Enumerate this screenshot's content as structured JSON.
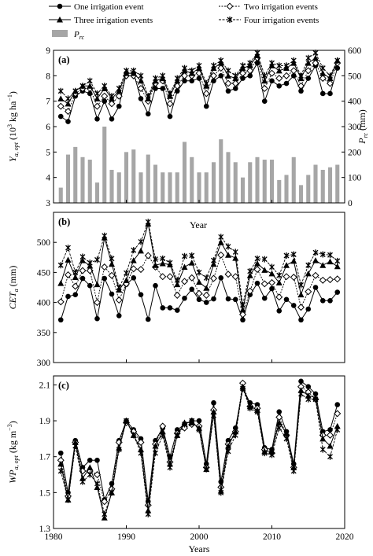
{
  "legend": {
    "one": "One irrigation event",
    "two": "Two irrigation events",
    "three": "Three irrigation events",
    "four": "Four irrigation events",
    "prc": "P",
    "prc_sub": "rc"
  },
  "chart_data": [
    {
      "panel": "(a)",
      "type": "line",
      "title": "",
      "xlabel": "",
      "ylabel": "Y_a,opt (10^3 kg ha^-1)",
      "ylabel_parts": {
        "main": "Y",
        "sub": "a, opt",
        "rest": " (10",
        "sup1": "3",
        "mid": " kg ha",
        "sup2": "−1",
        "end": ")"
      },
      "y2label_parts": {
        "main": "P",
        "sub": "rc",
        "rest": " (mm)"
      },
      "xlim": [
        1980,
        2020
      ],
      "ylim": [
        3,
        9
      ],
      "y_ticks": [
        3,
        4,
        5,
        6,
        7,
        8,
        9
      ],
      "y2lim": [
        0,
        600
      ],
      "y2_ticks": [
        0,
        100,
        200,
        300,
        400,
        500,
        600
      ],
      "x": [
        1981,
        1982,
        1983,
        1984,
        1985,
        1986,
        1987,
        1988,
        1989,
        1990,
        1991,
        1992,
        1993,
        1994,
        1995,
        1996,
        1997,
        1998,
        1999,
        2000,
        2001,
        2002,
        2003,
        2004,
        2005,
        2006,
        2007,
        2008,
        2009,
        2010,
        2011,
        2012,
        2013,
        2014,
        2015,
        2016,
        2017,
        2018,
        2019
      ],
      "series": [
        {
          "name": "One irrigation event",
          "marker": "circle",
          "values": [
            6.4,
            6.2,
            7.2,
            7.4,
            7.3,
            6.3,
            7.0,
            6.3,
            6.8,
            8.1,
            8.1,
            7.1,
            6.5,
            7.5,
            7.5,
            6.4,
            7.4,
            7.8,
            7.8,
            7.9,
            6.8,
            7.8,
            8.0,
            7.4,
            7.5,
            7.9,
            8.0,
            8.5,
            7.0,
            7.8,
            7.6,
            7.7,
            8.0,
            7.4,
            7.9,
            8.4,
            7.3,
            7.3,
            8.3
          ]
        },
        {
          "name": "Two irrigation events",
          "marker": "diamond",
          "values": [
            6.8,
            6.6,
            7.3,
            7.5,
            7.5,
            6.8,
            7.2,
            6.9,
            7.2,
            8.0,
            8.0,
            7.5,
            7.0,
            7.7,
            7.8,
            6.9,
            7.6,
            8.0,
            8.0,
            8.1,
            7.3,
            8.0,
            8.3,
            7.7,
            7.7,
            8.1,
            8.2,
            8.7,
            7.5,
            8.1,
            7.9,
            8.0,
            8.2,
            7.6,
            8.2,
            8.5,
            7.9,
            7.7,
            8.5
          ]
        },
        {
          "name": "Three irrigation events",
          "marker": "triangle",
          "values": [
            7.1,
            6.9,
            7.4,
            7.6,
            7.6,
            7.1,
            7.5,
            7.1,
            7.4,
            8.1,
            8.1,
            7.8,
            7.1,
            7.8,
            7.9,
            7.2,
            7.8,
            8.2,
            8.1,
            8.3,
            7.6,
            8.3,
            8.5,
            8.0,
            7.9,
            8.3,
            8.4,
            8.8,
            7.8,
            8.4,
            8.2,
            8.3,
            8.5,
            7.9,
            8.5,
            8.7,
            8.1,
            7.9,
            8.6
          ]
        },
        {
          "name": "Four irrigation events",
          "marker": "star",
          "values": [
            7.4,
            7.1,
            7.4,
            7.6,
            7.8,
            7.3,
            7.6,
            7.2,
            7.5,
            8.2,
            8.2,
            8.0,
            7.2,
            7.9,
            8.0,
            7.3,
            7.9,
            8.3,
            8.2,
            8.4,
            7.7,
            8.4,
            8.6,
            8.2,
            8.0,
            8.4,
            8.5,
            8.9,
            8.0,
            8.5,
            8.4,
            8.4,
            8.6,
            8.0,
            8.7,
            8.9,
            8.3,
            8.0,
            8.6
          ]
        },
        {
          "name": "P",
          "type": "bar",
          "axis": "right",
          "values": [
            60,
            190,
            220,
            180,
            170,
            80,
            300,
            130,
            120,
            200,
            210,
            120,
            190,
            150,
            120,
            120,
            120,
            240,
            180,
            120,
            120,
            160,
            250,
            200,
            160,
            100,
            160,
            180,
            170,
            170,
            90,
            110,
            180,
            70,
            110,
            150,
            130,
            140,
            150
          ]
        }
      ]
    },
    {
      "panel": "(b)",
      "type": "line",
      "title": "",
      "annotation": "Year",
      "xlabel": "",
      "ylabel_parts": {
        "main": "CET",
        "sub": "a",
        "rest": " (mm)"
      },
      "xlim": [
        1980,
        2020
      ],
      "ylim": [
        300,
        550
      ],
      "y_ticks": [
        300,
        350,
        400,
        450,
        500
      ],
      "x": [
        1981,
        1982,
        1983,
        1984,
        1985,
        1986,
        1987,
        1988,
        1989,
        1990,
        1991,
        1992,
        1993,
        1994,
        1995,
        1996,
        1997,
        1998,
        1999,
        2000,
        2001,
        2002,
        2003,
        2004,
        2005,
        2006,
        2007,
        2008,
        2009,
        2010,
        2011,
        2012,
        2013,
        2014,
        2015,
        2016,
        2017,
        2018,
        2019
      ],
      "series": [
        {
          "name": "One irrigation event",
          "marker": "circle",
          "values": [
            371,
            410,
            413,
            440,
            428,
            373,
            440,
            414,
            378,
            430,
            441,
            413,
            372,
            428,
            391,
            391,
            387,
            407,
            422,
            405,
            400,
            406,
            441,
            406,
            405,
            371,
            413,
            432,
            407,
            423,
            386,
            405,
            395,
            371,
            389,
            425,
            403,
            403,
            417
          ]
        },
        {
          "name": "Two irrigation events",
          "marker": "diamond",
          "values": [
            401,
            446,
            427,
            453,
            453,
            400,
            459,
            445,
            404,
            431,
            456,
            455,
            478,
            459,
            443,
            443,
            412,
            435,
            441,
            415,
            412,
            440,
            479,
            447,
            443,
            380,
            419,
            455,
            431,
            433,
            409,
            443,
            442,
            392,
            418,
            445,
            437,
            438,
            439
          ]
        },
        {
          "name": "Three irrigation events",
          "marker": "triangle",
          "values": [
            432,
            471,
            442,
            470,
            461,
            430,
            508,
            464,
            421,
            437,
            470,
            486,
            531,
            462,
            465,
            463,
            430,
            459,
            466,
            434,
            424,
            464,
            500,
            479,
            474,
            388,
            445,
            465,
            454,
            448,
            433,
            462,
            469,
            413,
            448,
            470,
            462,
            468,
            460
          ]
        },
        {
          "name": "Four irrigation events",
          "marker": "star",
          "values": [
            462,
            491,
            450,
            476,
            466,
            471,
            511,
            473,
            425,
            449,
            487,
            501,
            534,
            472,
            473,
            466,
            437,
            477,
            478,
            450,
            441,
            470,
            509,
            493,
            484,
            396,
            452,
            473,
            472,
            459,
            445,
            478,
            480,
            429,
            462,
            483,
            480,
            479,
            469
          ]
        }
      ]
    },
    {
      "panel": "(c)",
      "type": "line",
      "title": "",
      "xlabel": "Years",
      "ylabel_parts": {
        "main": "WP",
        "sub": "a, opt",
        "rest": " (kg m",
        "sup": "−3",
        "end": ")"
      },
      "xlim": [
        1980,
        2020
      ],
      "x_ticks": [
        1980,
        1990,
        2000,
        2010,
        2020
      ],
      "ylim": [
        1.3,
        2.15
      ],
      "y_ticks": [
        1.3,
        1.5,
        1.7,
        1.9,
        2.1
      ],
      "x": [
        1981,
        1982,
        1983,
        1984,
        1985,
        1986,
        1987,
        1988,
        1989,
        1990,
        1991,
        1992,
        1993,
        1994,
        1995,
        1996,
        1997,
        1998,
        1999,
        2000,
        2001,
        2002,
        2003,
        2004,
        2005,
        2006,
        2007,
        2008,
        2009,
        2010,
        2011,
        2012,
        2013,
        2014,
        2015,
        2016,
        2017,
        2018,
        2019
      ],
      "series": [
        {
          "name": "One irrigation event",
          "marker": "circle",
          "values": [
            1.72,
            1.5,
            1.79,
            1.64,
            1.68,
            1.68,
            1.46,
            1.55,
            1.79,
            1.9,
            1.85,
            1.8,
            1.45,
            1.79,
            1.86,
            1.7,
            1.85,
            1.88,
            1.9,
            1.9,
            1.66,
            2.0,
            1.56,
            1.79,
            1.86,
            2.08,
            2.0,
            1.99,
            1.75,
            1.74,
            1.95,
            1.84,
            1.66,
            2.12,
            2.09,
            2.05,
            1.84,
            1.85,
            1.99
          ]
        },
        {
          "name": "Two irrigation events",
          "marker": "diamond",
          "values": [
            1.68,
            1.48,
            1.78,
            1.62,
            1.62,
            1.6,
            1.45,
            1.52,
            1.78,
            1.89,
            1.84,
            1.78,
            1.43,
            1.77,
            1.87,
            1.67,
            1.83,
            1.86,
            1.88,
            1.87,
            1.64,
            1.96,
            1.53,
            1.77,
            1.84,
            2.11,
            1.98,
            1.97,
            1.74,
            1.72,
            1.92,
            1.82,
            1.64,
            2.09,
            2.06,
            2.02,
            1.82,
            1.82,
            1.94
          ]
        },
        {
          "name": "Three irrigation events",
          "marker": "triangle",
          "values": [
            1.66,
            1.46,
            1.78,
            1.58,
            1.64,
            1.53,
            1.36,
            1.5,
            1.75,
            1.9,
            1.82,
            1.74,
            1.4,
            1.76,
            1.84,
            1.66,
            1.82,
            1.89,
            1.89,
            1.86,
            1.63,
            1.95,
            1.51,
            1.76,
            1.84,
            2.09,
            1.98,
            1.96,
            1.73,
            1.73,
            1.89,
            1.83,
            1.64,
            2.07,
            2.04,
            2.03,
            1.8,
            1.76,
            1.87
          ]
        },
        {
          "name": "Four irrigation events",
          "marker": "star",
          "values": [
            1.62,
            1.46,
            1.76,
            1.56,
            1.6,
            1.55,
            1.38,
            1.5,
            1.74,
            1.9,
            1.82,
            1.72,
            1.38,
            1.72,
            1.82,
            1.64,
            1.82,
            1.88,
            1.9,
            1.85,
            1.63,
            1.93,
            1.5,
            1.73,
            1.82,
            2.08,
            1.97,
            1.95,
            1.72,
            1.71,
            1.86,
            1.8,
            1.62,
            2.05,
            2.02,
            2.02,
            1.74,
            1.7,
            1.85
          ]
        }
      ]
    }
  ]
}
